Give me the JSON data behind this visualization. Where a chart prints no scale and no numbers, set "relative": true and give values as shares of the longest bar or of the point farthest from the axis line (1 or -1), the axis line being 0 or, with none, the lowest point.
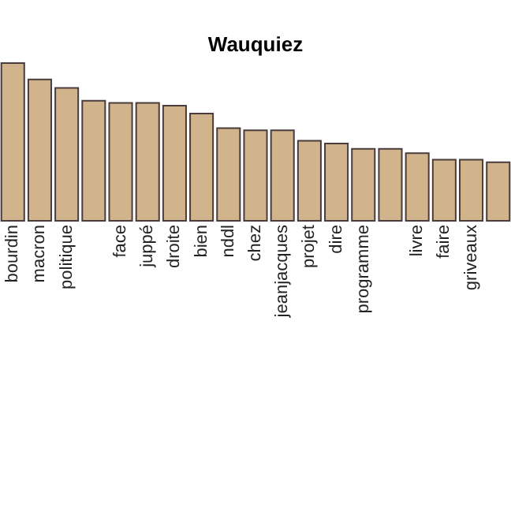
{
  "chart_data": {
    "type": "bar",
    "title": "Wauquiez",
    "relative": true,
    "color": "#d2b48c",
    "categories": [
      "bourdin",
      "macron",
      "politique",
      null,
      "face",
      "juppé",
      "droite",
      "bien",
      "nddl",
      "chez",
      "jeanjacques",
      "projet",
      "dire",
      "programme",
      null,
      "livre",
      "faire",
      "griveaux",
      null
    ],
    "values": [
      1,
      0.896,
      0.842,
      0.761,
      0.747,
      0.747,
      0.73,
      0.68,
      0.588,
      0.574,
      0.574,
      0.507,
      0.49,
      0.456,
      0.456,
      0.429,
      0.388,
      0.388,
      0.371
    ]
  }
}
